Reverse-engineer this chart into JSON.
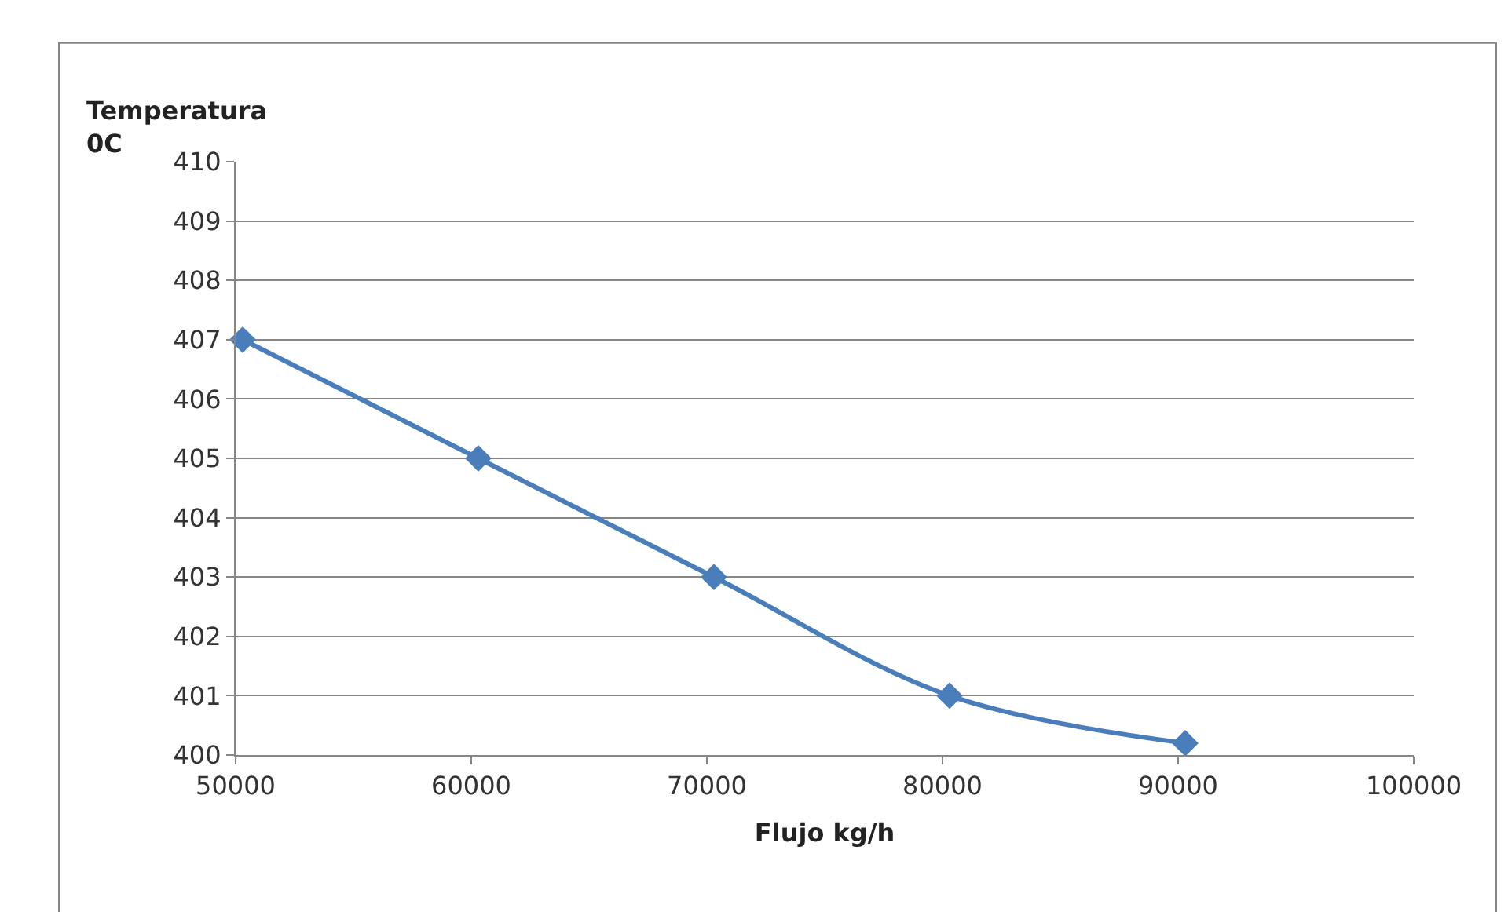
{
  "chart_data": {
    "type": "line",
    "ylabel": "Temperatura\n0C",
    "xlabel": "Flujo kg/h",
    "x": [
      50300,
      60300,
      70300,
      80300,
      90300
    ],
    "series": [
      {
        "color": "#4a7ebb",
        "values": [
          407,
          405,
          403,
          401,
          400.2
        ]
      }
    ],
    "xlim": [
      50000,
      100000
    ],
    "xticks": [
      50000,
      60000,
      70000,
      80000,
      90000,
      100000
    ],
    "ylim": [
      400,
      410
    ],
    "yticks": [
      400,
      401,
      402,
      403,
      404,
      405,
      406,
      407,
      408,
      409,
      410
    ],
    "grid": "y",
    "marker": "diamond",
    "line_style": "solid",
    "legend": false
  }
}
